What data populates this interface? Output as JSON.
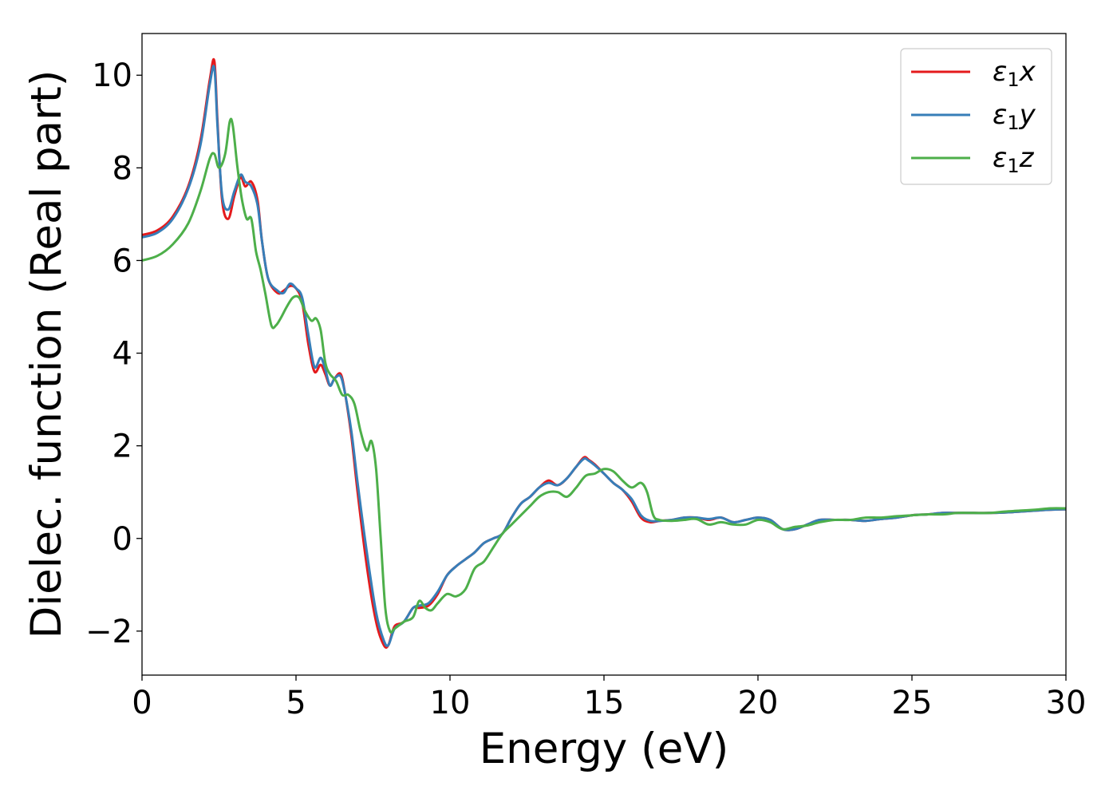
{
  "chart_data": {
    "type": "line",
    "xlabel": "Energy (eV)",
    "ylabel": "Dielec. function (Real part)",
    "xlim": [
      0,
      30
    ],
    "ylim": [
      -2.95,
      10.9
    ],
    "xticks": [
      0,
      5,
      10,
      15,
      20,
      25,
      30
    ],
    "xtick_labels": [
      "0",
      "5",
      "10",
      "15",
      "20",
      "25",
      "30"
    ],
    "yticks": [
      -2,
      0,
      2,
      4,
      6,
      8,
      10
    ],
    "ytick_labels": [
      "−2",
      "0",
      "2",
      "4",
      "6",
      "8",
      "10"
    ],
    "grid": false,
    "legend_position": "top-right",
    "series": [
      {
        "name": "ε₁x",
        "legend_base": "ε",
        "legend_sub": "1",
        "legend_tail": "x",
        "color": "#e41a1c",
        "x": [
          0,
          0.5,
          1.0,
          1.5,
          1.9,
          2.2,
          2.35,
          2.45,
          2.6,
          2.8,
          3.0,
          3.2,
          3.35,
          3.55,
          3.75,
          3.9,
          4.1,
          4.4,
          4.6,
          4.8,
          5.0,
          5.2,
          5.4,
          5.6,
          5.8,
          5.95,
          6.1,
          6.25,
          6.45,
          6.6,
          6.8,
          7.0,
          7.3,
          7.6,
          7.85,
          8.0,
          8.2,
          8.5,
          8.8,
          9.0,
          9.3,
          9.6,
          9.9,
          10.2,
          10.5,
          10.8,
          11.1,
          11.4,
          11.7,
          12.0,
          12.3,
          12.6,
          12.9,
          13.2,
          13.5,
          13.8,
          14.1,
          14.35,
          14.5,
          14.7,
          15.0,
          15.3,
          15.6,
          15.9,
          16.2,
          16.5,
          16.8,
          17.2,
          17.6,
          18.0,
          18.4,
          18.8,
          19.2,
          19.6,
          20.0,
          20.4,
          20.8,
          21.2,
          21.6,
          22.0,
          22.5,
          23.0,
          23.5,
          24.0,
          24.5,
          25.0,
          25.5,
          26.0,
          26.5,
          27.0,
          27.5,
          28.0,
          28.5,
          29.0,
          29.5,
          30.0
        ],
        "y": [
          6.55,
          6.65,
          6.95,
          7.6,
          8.6,
          9.9,
          10.3,
          9.0,
          7.3,
          6.9,
          7.4,
          7.8,
          7.6,
          7.7,
          7.3,
          6.4,
          5.6,
          5.3,
          5.35,
          5.45,
          5.4,
          5.1,
          4.2,
          3.6,
          3.75,
          3.55,
          3.3,
          3.45,
          3.55,
          3.1,
          2.2,
          1.0,
          -0.6,
          -1.8,
          -2.3,
          -2.3,
          -1.9,
          -1.8,
          -1.5,
          -1.5,
          -1.45,
          -1.2,
          -0.8,
          -0.6,
          -0.45,
          -0.3,
          -0.1,
          0.0,
          0.1,
          0.45,
          0.75,
          0.9,
          1.1,
          1.25,
          1.15,
          1.3,
          1.55,
          1.75,
          1.7,
          1.6,
          1.4,
          1.2,
          1.05,
          0.8,
          0.45,
          0.35,
          0.38,
          0.4,
          0.45,
          0.45,
          0.4,
          0.45,
          0.35,
          0.4,
          0.45,
          0.4,
          0.2,
          0.2,
          0.3,
          0.4,
          0.4,
          0.4,
          0.38,
          0.42,
          0.45,
          0.5,
          0.52,
          0.55,
          0.55,
          0.55,
          0.55,
          0.56,
          0.58,
          0.6,
          0.62,
          0.63
        ]
      },
      {
        "name": "ε₁y",
        "legend_base": "ε",
        "legend_sub": "1",
        "legend_tail": "y",
        "color": "#377eb8",
        "x": [
          0,
          0.5,
          1.0,
          1.5,
          1.9,
          2.2,
          2.35,
          2.45,
          2.6,
          2.8,
          3.0,
          3.2,
          3.35,
          3.55,
          3.75,
          3.9,
          4.1,
          4.4,
          4.6,
          4.8,
          5.0,
          5.2,
          5.4,
          5.6,
          5.8,
          5.95,
          6.1,
          6.25,
          6.45,
          6.6,
          6.8,
          7.0,
          7.3,
          7.6,
          7.85,
          8.0,
          8.2,
          8.5,
          8.8,
          9.0,
          9.3,
          9.6,
          9.9,
          10.2,
          10.5,
          10.8,
          11.1,
          11.4,
          11.7,
          12.0,
          12.3,
          12.6,
          12.9,
          13.2,
          13.5,
          13.8,
          14.1,
          14.35,
          14.5,
          14.7,
          15.0,
          15.3,
          15.6,
          15.9,
          16.2,
          16.5,
          16.8,
          17.2,
          17.6,
          18.0,
          18.4,
          18.8,
          19.2,
          19.6,
          20.0,
          20.4,
          20.8,
          21.2,
          21.6,
          22.0,
          22.5,
          23.0,
          23.5,
          24.0,
          24.5,
          25.0,
          25.5,
          26.0,
          26.5,
          27.0,
          27.5,
          28.0,
          28.5,
          29.0,
          29.5,
          30.0
        ],
        "y": [
          6.5,
          6.6,
          6.9,
          7.55,
          8.5,
          9.8,
          10.15,
          8.9,
          7.4,
          7.1,
          7.5,
          7.85,
          7.7,
          7.6,
          7.2,
          6.4,
          5.6,
          5.35,
          5.3,
          5.5,
          5.4,
          5.2,
          4.4,
          3.7,
          3.9,
          3.65,
          3.3,
          3.45,
          3.5,
          3.1,
          2.3,
          1.2,
          -0.3,
          -1.6,
          -2.2,
          -2.3,
          -1.95,
          -1.8,
          -1.5,
          -1.45,
          -1.4,
          -1.15,
          -0.8,
          -0.6,
          -0.45,
          -0.3,
          -0.1,
          0.0,
          0.1,
          0.45,
          0.75,
          0.9,
          1.1,
          1.2,
          1.15,
          1.3,
          1.55,
          1.72,
          1.68,
          1.58,
          1.4,
          1.2,
          1.05,
          0.85,
          0.5,
          0.38,
          0.38,
          0.4,
          0.45,
          0.45,
          0.42,
          0.45,
          0.35,
          0.4,
          0.45,
          0.4,
          0.2,
          0.2,
          0.3,
          0.4,
          0.4,
          0.4,
          0.38,
          0.42,
          0.45,
          0.5,
          0.52,
          0.55,
          0.55,
          0.55,
          0.55,
          0.56,
          0.58,
          0.6,
          0.62,
          0.63
        ]
      },
      {
        "name": "ε₁z",
        "legend_base": "ε",
        "legend_sub": "1",
        "legend_tail": "z",
        "color": "#4daf4a",
        "x": [
          0,
          0.5,
          1.0,
          1.5,
          1.9,
          2.2,
          2.35,
          2.5,
          2.7,
          2.85,
          2.95,
          3.1,
          3.25,
          3.4,
          3.55,
          3.7,
          3.85,
          4.0,
          4.2,
          4.35,
          4.5,
          4.7,
          4.9,
          5.1,
          5.3,
          5.5,
          5.65,
          5.8,
          5.95,
          6.1,
          6.3,
          6.5,
          6.7,
          6.9,
          7.1,
          7.3,
          7.45,
          7.6,
          7.75,
          7.9,
          8.05,
          8.2,
          8.5,
          8.8,
          9.0,
          9.2,
          9.4,
          9.6,
          9.9,
          10.2,
          10.5,
          10.8,
          11.1,
          11.4,
          11.7,
          12.0,
          12.3,
          12.6,
          12.9,
          13.2,
          13.5,
          13.8,
          14.1,
          14.4,
          14.7,
          15.0,
          15.3,
          15.6,
          15.9,
          16.2,
          16.4,
          16.6,
          16.8,
          17.2,
          17.6,
          18.0,
          18.4,
          18.8,
          19.2,
          19.6,
          20.0,
          20.4,
          20.8,
          21.2,
          21.6,
          22.0,
          22.5,
          23.0,
          23.5,
          24.0,
          24.5,
          25.0,
          25.5,
          26.0,
          26.5,
          27.0,
          27.5,
          28.0,
          28.5,
          29.0,
          29.5,
          30.0
        ],
        "y": [
          6.0,
          6.1,
          6.35,
          6.8,
          7.5,
          8.2,
          8.3,
          8.0,
          8.3,
          9.0,
          8.9,
          8.0,
          7.3,
          6.9,
          6.9,
          6.2,
          5.8,
          5.3,
          4.6,
          4.6,
          4.75,
          5.0,
          5.2,
          5.2,
          4.9,
          4.7,
          4.75,
          4.5,
          3.8,
          3.55,
          3.4,
          3.1,
          3.1,
          2.9,
          2.3,
          1.9,
          2.1,
          1.5,
          0.0,
          -1.5,
          -2.0,
          -1.95,
          -1.8,
          -1.7,
          -1.35,
          -1.5,
          -1.55,
          -1.4,
          -1.2,
          -1.25,
          -1.1,
          -0.65,
          -0.5,
          -0.2,
          0.1,
          0.3,
          0.5,
          0.7,
          0.9,
          1.0,
          1.0,
          0.9,
          1.1,
          1.35,
          1.4,
          1.5,
          1.45,
          1.25,
          1.1,
          1.2,
          1.0,
          0.5,
          0.4,
          0.38,
          0.4,
          0.42,
          0.3,
          0.35,
          0.3,
          0.3,
          0.4,
          0.35,
          0.2,
          0.25,
          0.28,
          0.35,
          0.4,
          0.4,
          0.45,
          0.45,
          0.48,
          0.5,
          0.52,
          0.52,
          0.55,
          0.55,
          0.55,
          0.58,
          0.6,
          0.62,
          0.65,
          0.65
        ]
      }
    ]
  }
}
